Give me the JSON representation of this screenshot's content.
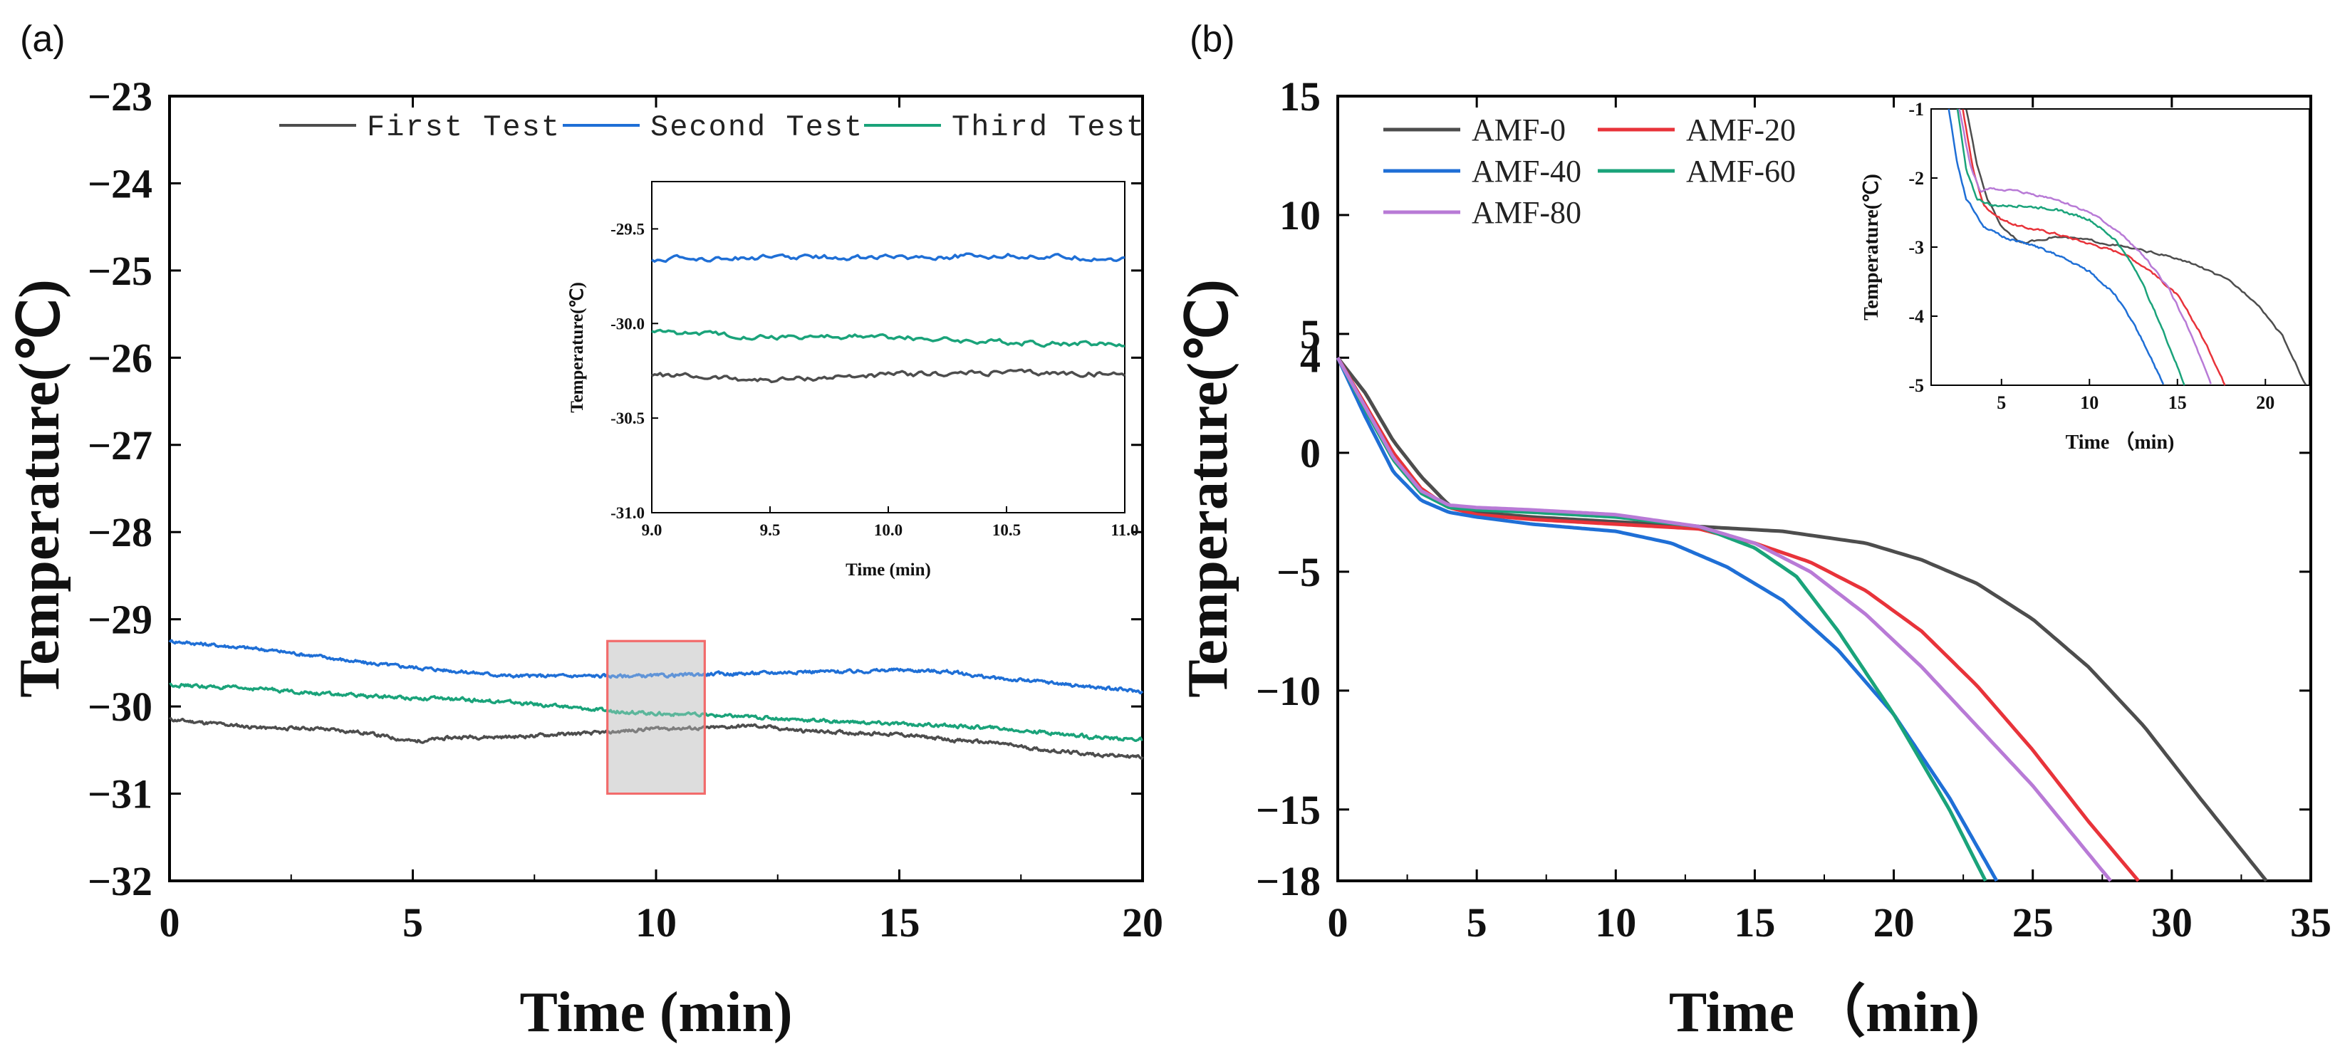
{
  "panels": {
    "a_label": "(a)",
    "b_label": "(b)"
  },
  "chart_data": [
    {
      "id": "a",
      "type": "line",
      "panel_label": "(a)",
      "xlabel": "Time (min)",
      "ylabel": "Temperature(℃)",
      "xlim": [
        0,
        20
      ],
      "ylim": [
        -32,
        -23
      ],
      "xticks": [
        0,
        5,
        10,
        15,
        20
      ],
      "xtick_labels": [
        "0",
        "5",
        "10",
        "15",
        "20"
      ],
      "yticks": [
        -32,
        -31,
        -30,
        -29,
        -28,
        -27,
        -26,
        -25,
        -24,
        -23
      ],
      "ytick_labels": [
        "−32",
        "−31",
        "−30",
        "−29",
        "−28",
        "−27",
        "−26",
        "−25",
        "−24",
        "−23"
      ],
      "legend_position": "top-right",
      "highlight_region": {
        "x": [
          9,
          11
        ],
        "y": [
          -31,
          -29.25
        ]
      },
      "series": [
        {
          "name": "First Test",
          "color": "#4d4d4d",
          "x": [
            0,
            1,
            2,
            3,
            4,
            5,
            6,
            7,
            8,
            9,
            10,
            11,
            12,
            13,
            14,
            15,
            16,
            17,
            18,
            19,
            20
          ],
          "y": [
            -30.15,
            -30.2,
            -30.25,
            -30.25,
            -30.3,
            -30.4,
            -30.35,
            -30.35,
            -30.32,
            -30.3,
            -30.25,
            -30.25,
            -30.22,
            -30.28,
            -30.3,
            -30.32,
            -30.38,
            -30.42,
            -30.5,
            -30.55,
            -30.58
          ],
          "noise": 0.035
        },
        {
          "name": "Second Test",
          "color": "#1f6fd6",
          "x": [
            0,
            1,
            2,
            3,
            4,
            5,
            6,
            7,
            8,
            9,
            10,
            11,
            12,
            13,
            14,
            15,
            16,
            17,
            18,
            19,
            20
          ],
          "y": [
            -29.25,
            -29.3,
            -29.35,
            -29.42,
            -29.5,
            -29.55,
            -29.6,
            -29.65,
            -29.65,
            -29.65,
            -29.65,
            -29.63,
            -29.62,
            -29.6,
            -29.6,
            -29.58,
            -29.6,
            -29.68,
            -29.72,
            -29.78,
            -29.83
          ],
          "noise": 0.035
        },
        {
          "name": "Third Test",
          "color": "#1aa37a",
          "x": [
            0,
            1,
            2,
            3,
            4,
            5,
            6,
            7,
            8,
            9,
            10,
            11,
            12,
            13,
            14,
            15,
            16,
            17,
            18,
            19,
            20
          ],
          "y": [
            -29.75,
            -29.78,
            -29.8,
            -29.85,
            -29.88,
            -29.9,
            -29.92,
            -29.95,
            -30.0,
            -30.05,
            -30.08,
            -30.1,
            -30.12,
            -30.15,
            -30.18,
            -30.2,
            -30.22,
            -30.25,
            -30.3,
            -30.35,
            -30.38
          ],
          "noise": 0.035
        }
      ],
      "inset": {
        "xlabel": "Time (min)",
        "ylabel": "Temperature(℃)",
        "xlim": [
          9,
          11
        ],
        "ylim": [
          -31,
          -29.25
        ],
        "xticks": [
          9,
          9.5,
          10,
          10.5,
          11
        ],
        "xtick_labels": [
          "9.0",
          "9.5",
          "10.0",
          "10.5",
          "11.0"
        ],
        "yticks": [
          -31,
          -30.5,
          -30,
          -29.5
        ],
        "ytick_labels": [
          "-31.0",
          "-30.5",
          "-30.0",
          "-29.5"
        ],
        "series": [
          {
            "name": "First Test",
            "color": "#4d4d4d",
            "x": [
              9,
              9.5,
              10,
              10.5,
              11
            ],
            "y": [
              -30.27,
              -30.3,
              -30.27,
              -30.26,
              -30.27
            ],
            "noise": 0.025
          },
          {
            "name": "Second Test",
            "color": "#1f6fd6",
            "x": [
              9,
              9.5,
              10,
              10.5,
              11
            ],
            "y": [
              -29.66,
              -29.65,
              -29.65,
              -29.64,
              -29.66
            ],
            "noise": 0.025
          },
          {
            "name": "Third Test",
            "color": "#1aa37a",
            "x": [
              9,
              9.5,
              10,
              10.5,
              11
            ],
            "y": [
              -30.04,
              -30.07,
              -30.07,
              -30.1,
              -30.11
            ],
            "noise": 0.025
          }
        ]
      }
    },
    {
      "id": "b",
      "type": "line",
      "panel_label": "(b)",
      "xlabel": "Time （min)",
      "ylabel": "Temperature(℃)",
      "xlim": [
        0,
        35
      ],
      "ylim": [
        -18,
        15
      ],
      "xticks": [
        0,
        5,
        10,
        15,
        20,
        25,
        30,
        35
      ],
      "xtick_labels": [
        "0",
        "5",
        "10",
        "15",
        "20",
        "25",
        "30",
        "35"
      ],
      "yticks": [
        -18,
        -15,
        -10,
        -5,
        0,
        4,
        5,
        10,
        15
      ],
      "ytick_labels": [
        "−18",
        "−15",
        "−10",
        "−5",
        "0",
        "4",
        "5",
        "10",
        "15"
      ],
      "legend_position": "top-left",
      "series": [
        {
          "name": "AMF-0",
          "color": "#4d4d4d",
          "x": [
            0,
            1,
            2,
            3,
            4,
            5,
            7,
            10,
            13,
            16,
            19,
            21,
            23,
            25,
            27,
            29,
            31,
            33.4
          ],
          "y": [
            4,
            2.5,
            0.5,
            -1,
            -2.2,
            -2.5,
            -2.7,
            -2.9,
            -3.1,
            -3.3,
            -3.8,
            -4.5,
            -5.5,
            -7,
            -9,
            -11.5,
            -14.5,
            -18
          ]
        },
        {
          "name": "AMF-20",
          "color": "#e8333a",
          "x": [
            0,
            1,
            2,
            3,
            4,
            5,
            7,
            10,
            13,
            15,
            17,
            19,
            21,
            23,
            25,
            27,
            28.8
          ],
          "y": [
            4,
            2,
            0,
            -1.5,
            -2.3,
            -2.6,
            -2.8,
            -3,
            -3.2,
            -3.8,
            -4.6,
            -5.8,
            -7.5,
            -9.8,
            -12.5,
            -15.5,
            -18
          ]
        },
        {
          "name": "AMF-40",
          "color": "#1f6fd6",
          "x": [
            0,
            1,
            2,
            3,
            4,
            5,
            7,
            10,
            12,
            14,
            16,
            18,
            20,
            22,
            23.7
          ],
          "y": [
            4,
            1.5,
            -0.8,
            -2,
            -2.5,
            -2.7,
            -3,
            -3.3,
            -3.8,
            -4.8,
            -6.2,
            -8.3,
            -11,
            -14.5,
            -18
          ]
        },
        {
          "name": "AMF-60",
          "color": "#1aa37a",
          "x": [
            0,
            1,
            2,
            3,
            4,
            5,
            7,
            10,
            13,
            15,
            16.5,
            18,
            20,
            22,
            23.3
          ],
          "y": [
            4,
            1.8,
            -0.3,
            -1.7,
            -2.3,
            -2.4,
            -2.5,
            -2.7,
            -3.1,
            -4,
            -5.2,
            -7.5,
            -11,
            -15,
            -18
          ]
        },
        {
          "name": "AMF-80",
          "color": "#b87ad6",
          "x": [
            0,
            1,
            2,
            3,
            4,
            5,
            7,
            10,
            13,
            15,
            17,
            19,
            21,
            23,
            25,
            27.8
          ],
          "y": [
            4,
            1.9,
            -0.2,
            -1.6,
            -2.2,
            -2.3,
            -2.4,
            -2.6,
            -3.1,
            -3.8,
            -5,
            -6.8,
            -9,
            -11.5,
            -14,
            -18
          ]
        }
      ],
      "inset": {
        "xlabel": "Time （min)",
        "ylabel": "Temperature(℃)",
        "xlim": [
          1,
          22.5
        ],
        "ylim": [
          -5,
          -1
        ],
        "xticks": [
          5,
          10,
          15,
          20
        ],
        "xtick_labels": [
          "5",
          "10",
          "15",
          "20"
        ],
        "yticks": [
          -5,
          -4,
          -3,
          -2,
          -1
        ],
        "ytick_labels": [
          "-5",
          "-4",
          "-3",
          "-2",
          "-1"
        ],
        "series": [
          {
            "name": "AMF-0",
            "color": "#4d4d4d",
            "x": [
              3,
              3.6,
              4.2,
              5,
              6.2,
              7,
              8,
              10,
              12,
              14,
              16,
              18,
              19.5,
              21,
              22.3
            ],
            "y": [
              -1,
              -1.8,
              -2.3,
              -2.7,
              -2.95,
              -2.9,
              -2.85,
              -2.9,
              -3.0,
              -3.1,
              -3.25,
              -3.5,
              -3.8,
              -4.3,
              -5
            ]
          },
          {
            "name": "AMF-20",
            "color": "#e8333a",
            "x": [
              2.8,
              3.4,
              4,
              5,
              6,
              8,
              10,
              12,
              13.5,
              15,
              16.2,
              17,
              17.7
            ],
            "y": [
              -1,
              -1.9,
              -2.4,
              -2.6,
              -2.7,
              -2.8,
              -2.95,
              -3.1,
              -3.35,
              -3.7,
              -4.2,
              -4.6,
              -5
            ]
          },
          {
            "name": "AMF-40",
            "color": "#1f6fd6",
            "x": [
              2.0,
              2.5,
              3,
              4,
              5,
              6.5,
              8,
              10,
              11.5,
              12.7,
              13.5,
              14.2
            ],
            "y": [
              -1,
              -1.8,
              -2.3,
              -2.7,
              -2.85,
              -2.95,
              -3.1,
              -3.35,
              -3.7,
              -4.2,
              -4.6,
              -5
            ]
          },
          {
            "name": "AMF-60",
            "color": "#1aa37a",
            "x": [
              2.5,
              3,
              3.6,
              4.5,
              6,
              8,
              10,
              11.5,
              12.8,
              14,
              14.8,
              15.4
            ],
            "y": [
              -1,
              -1.9,
              -2.3,
              -2.4,
              -2.4,
              -2.45,
              -2.6,
              -2.9,
              -3.4,
              -4.1,
              -4.6,
              -5
            ]
          },
          {
            "name": "AMF-80",
            "color": "#b87ad6",
            "x": [
              2.6,
              3.2,
              3.8,
              4.5,
              6,
              8,
              10,
              11.5,
              13,
              14.5,
              15.5,
              16.3,
              16.9
            ],
            "y": [
              -1,
              -1.8,
              -2.2,
              -2.15,
              -2.2,
              -2.3,
              -2.5,
              -2.75,
              -3.1,
              -3.6,
              -4.1,
              -4.6,
              -5
            ]
          }
        ]
      }
    }
  ]
}
